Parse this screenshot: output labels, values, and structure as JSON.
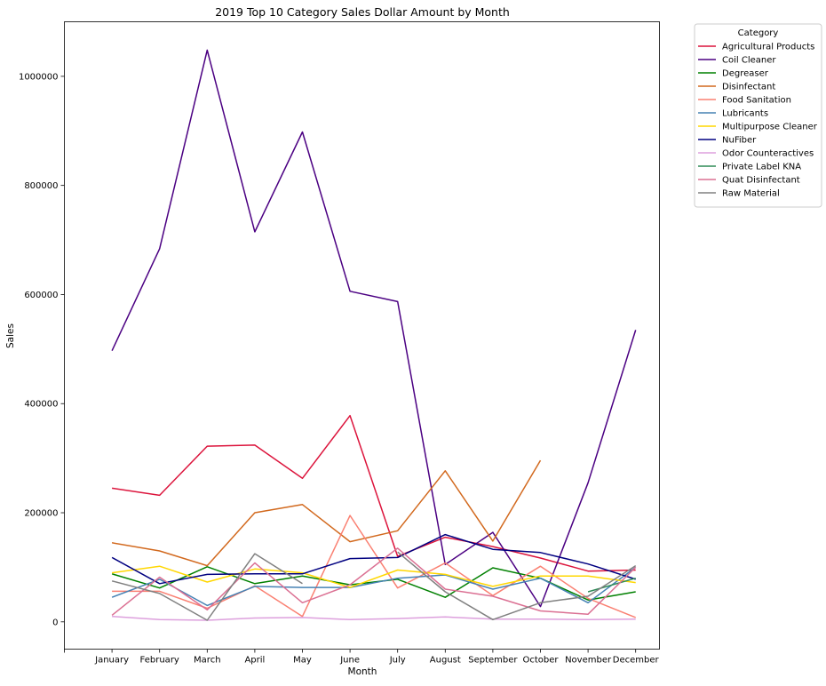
{
  "chart_data": {
    "type": "line",
    "title": "2019 Top 10 Category Sales Dollar Amount by Month",
    "xlabel": "Month",
    "ylabel": "Sales",
    "categories": [
      "January",
      "February",
      "March",
      "April",
      "May",
      "June",
      "July",
      "August",
      "September",
      "October",
      "November",
      "December"
    ],
    "y_ticks": [
      0,
      200000,
      400000,
      600000,
      800000,
      1000000
    ],
    "y_tick_labels": [
      "0",
      "200000",
      "400000",
      "600000",
      "800000",
      "1000000"
    ],
    "ylim": [
      -50000,
      1100000
    ],
    "grid": false,
    "legend": {
      "title": "Category",
      "placement": "outside-top-right"
    },
    "series": [
      {
        "name": "Agricultural Products",
        "color": "#dc143c",
        "values": [
          245000,
          232000,
          322000,
          324000,
          263000,
          378000,
          120000,
          155000,
          138000,
          117000,
          93000,
          95000
        ]
      },
      {
        "name": "Coil Cleaner",
        "color": "#4b0082",
        "values": [
          497000,
          684000,
          1048000,
          715000,
          898000,
          606000,
          587000,
          105000,
          164000,
          28000,
          255000,
          535000
        ]
      },
      {
        "name": "Degreaser",
        "color": "#008000",
        "values": [
          88000,
          62000,
          101000,
          70000,
          84000,
          68000,
          78000,
          45000,
          99000,
          80000,
          40000,
          55000
        ]
      },
      {
        "name": "Disinfectant",
        "color": "#d2691e",
        "values": [
          145000,
          130000,
          103000,
          200000,
          215000,
          147000,
          167000,
          277000,
          148000,
          296000,
          null,
          104000
        ]
      },
      {
        "name": "Food Sanitation",
        "color": "#fa8072",
        "values": [
          56000,
          56000,
          25000,
          66000,
          10000,
          195000,
          62000,
          108000,
          48000,
          102000,
          43000,
          8000
        ]
      },
      {
        "name": "Lubricants",
        "color": "#4682b4",
        "values": [
          45000,
          78000,
          30000,
          65000,
          63000,
          63000,
          80000,
          86000,
          60000,
          80000,
          35000,
          100000
        ]
      },
      {
        "name": "Multipurpose Cleaner",
        "color": "#ffd700",
        "values": [
          90000,
          102000,
          73000,
          97000,
          90000,
          63000,
          95000,
          87000,
          65000,
          84000,
          84000,
          72000
        ]
      },
      {
        "name": "NuFiber",
        "color": "#000080",
        "values": [
          118000,
          70000,
          87000,
          88000,
          88000,
          116000,
          118000,
          160000,
          133000,
          127000,
          106000,
          78000
        ]
      },
      {
        "name": "Odor Counteractives",
        "color": "#dda0dd",
        "values": [
          10000,
          4000,
          3000,
          7000,
          8000,
          4000,
          6000,
          9000,
          5000,
          5000,
          4000,
          5000
        ]
      },
      {
        "name": "Private Label KNA",
        "color": "#2e8b57",
        "values": [
          null,
          null,
          null,
          null,
          null,
          null,
          null,
          null,
          null,
          null,
          55000,
          80000
        ]
      },
      {
        "name": "Quat Disinfectant",
        "color": "#db7093",
        "values": [
          12000,
          82000,
          22000,
          108000,
          35000,
          68000,
          135000,
          60000,
          47000,
          20000,
          14000,
          100000
        ]
      },
      {
        "name": "Raw Material",
        "color": "#808080",
        "values": [
          75000,
          52000,
          3000,
          125000,
          70000,
          null,
          128000,
          55000,
          4000,
          35000,
          47000,
          103000
        ]
      }
    ]
  }
}
